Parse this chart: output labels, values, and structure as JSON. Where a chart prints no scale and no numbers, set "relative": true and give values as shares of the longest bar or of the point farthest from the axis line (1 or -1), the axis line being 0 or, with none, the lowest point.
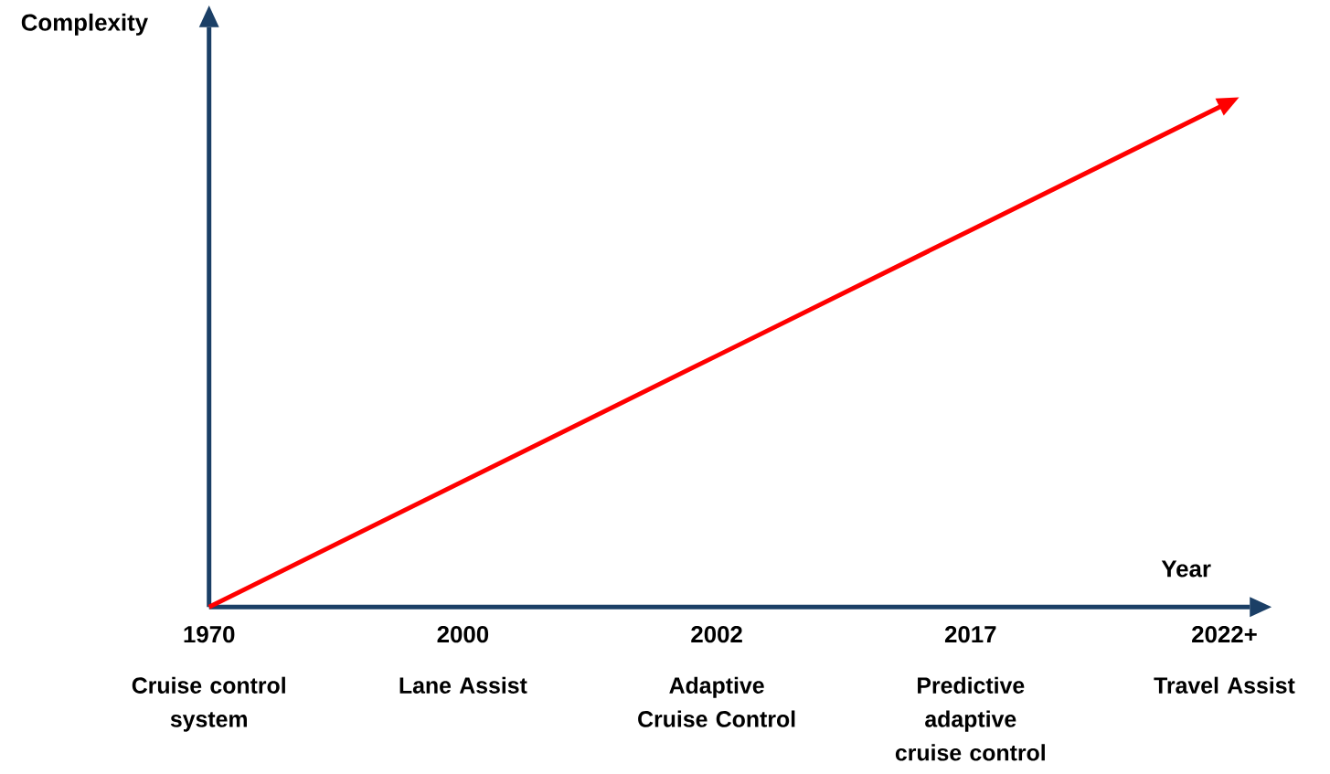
{
  "chart_data": {
    "type": "line",
    "xlabel": "Year",
    "ylabel": "Complexity",
    "categories": [
      "1970",
      "2000",
      "2002",
      "2017",
      "2022+"
    ],
    "values": [
      0,
      0.25,
      0.5,
      0.75,
      1
    ],
    "color": "#ff0000",
    "relative": true,
    "marker": "none",
    "annotations": [
      "Cruise control system",
      "Lane Assist",
      "Adaptive Cruise Control",
      "Predictive adaptive cruise control",
      "Travel Assist"
    ]
  }
}
